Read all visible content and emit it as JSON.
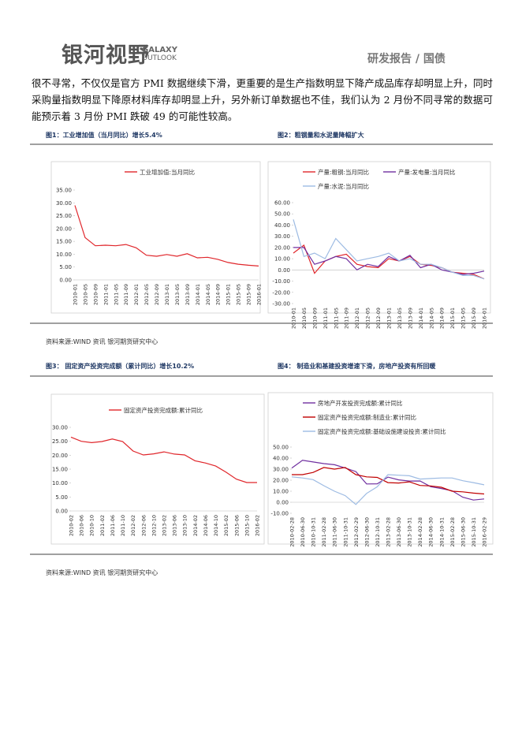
{
  "header": {
    "logo": "银河视野",
    "logo_en_1": "GALAXY",
    "logo_en_2": "OUTLOOK",
    "section": "研发报告 / 国债"
  },
  "paragraph": "很不寻常，不仅仅是官方 PMI 数据继续下滑，更重要的是生产指数明显下降产成品库存却明显上升，同时采购量指数明显下降原材料库存却明显上升，另外新订单数据也不佳，我们认为 2 月份不同寻常的数据可能预示着 3 月份 PMI 跌破 49 的可能性较高。",
  "sources": [
    "资料来源:WIND 资讯   银河期货研究中心",
    "资料来源:WIND 资讯   银河期货研究中心"
  ],
  "chart_data": [
    {
      "type": "line",
      "title": "图1：工业增加值（当月同比）增长5.4%",
      "categories": [
        "2010-01",
        "2010-05",
        "2010-09",
        "2011-01",
        "2011-05",
        "2011-09",
        "2012-01",
        "2012-05",
        "2012-09",
        "2013-01",
        "2013-05",
        "2013-09",
        "2014-01",
        "2014-05",
        "2014-09",
        "2015-01",
        "2015-05",
        "2015-09",
        "2016-01"
      ],
      "series": [
        {
          "name": "工业增加值:当月同比",
          "color": "#e0262b",
          "values": [
            29,
            16.5,
            13.3,
            13.5,
            13.3,
            13.8,
            12.5,
            9.6,
            9.2,
            9.9,
            9.2,
            10.2,
            8.6,
            8.8,
            8,
            6.8,
            6.1,
            5.7,
            5.4
          ]
        }
      ],
      "ylim": [
        0,
        35
      ],
      "yticks": [
        {
          "value": 0,
          "label": "0.00"
        },
        {
          "value": 5,
          "label": "5.00"
        },
        {
          "value": 10,
          "label": "10.00"
        },
        {
          "value": 15,
          "label": "15.00"
        },
        {
          "value": 20,
          "label": "20.00"
        },
        {
          "value": 25,
          "label": "25.00"
        },
        {
          "value": 30,
          "label": "30.00"
        },
        {
          "value": 35,
          "label": "35.00"
        }
      ]
    },
    {
      "type": "line",
      "title": "图2：粗钢量和水泥量降幅扩大",
      "categories": [
        "2010-01",
        "2010-05",
        "2010-09",
        "2011-01",
        "2011-05",
        "2011-09",
        "2012-01",
        "2012-05",
        "2012-09",
        "2013-01",
        "2013-05",
        "2013-09",
        "2014-01",
        "2014-05",
        "2014-09",
        "2015-01",
        "2015-05",
        "2015-09",
        "2016-01"
      ],
      "series": [
        {
          "name": "产量:粗钢:当月同比",
          "color": "#e0262b",
          "values": [
            15,
            22,
            -3,
            8,
            12,
            14,
            5,
            3,
            2,
            10,
            8,
            12,
            5,
            4,
            2,
            -2,
            -3,
            -4,
            -8
          ]
        },
        {
          "name": "产量:发电量:当月同比",
          "color": "#7030a0",
          "values": [
            20,
            20,
            5,
            8,
            12,
            10,
            0,
            5,
            3,
            12,
            8,
            13,
            2,
            5,
            0,
            -2,
            -4,
            -3,
            -1
          ]
        },
        {
          "name": "产量:水泥:当月同比",
          "color": "#9dbbe3",
          "values": [
            45,
            12,
            15,
            10,
            28,
            18,
            8,
            10,
            12,
            15,
            8,
            10,
            5,
            5,
            2,
            -2,
            -5,
            -5,
            -8
          ]
        }
      ],
      "ylim": [
        -30,
        60
      ],
      "yticks": [
        {
          "value": -30,
          "label": "-30.00"
        },
        {
          "value": -20,
          "label": "-20.00"
        },
        {
          "value": -10,
          "label": "-10.00"
        },
        {
          "value": 0,
          "label": "0.00"
        },
        {
          "value": 10,
          "label": "10.00"
        },
        {
          "value": 20,
          "label": "20.00"
        },
        {
          "value": 30,
          "label": "30.00"
        },
        {
          "value": 40,
          "label": "40.00"
        },
        {
          "value": 50,
          "label": "50.00"
        },
        {
          "value": 60,
          "label": "60.00"
        }
      ]
    },
    {
      "type": "line",
      "title": "图3：  固定资产投资完成额（累计同比）增长10.2%",
      "categories": [
        "2010-02",
        "2010-06",
        "2010-10",
        "2011-02",
        "2011-06",
        "2011-10",
        "2012-02",
        "2012-06",
        "2012-10",
        "2013-02",
        "2013-06",
        "2013-10",
        "2014-02",
        "2014-06",
        "2014-10",
        "2015-02",
        "2015-06",
        "2015-10",
        "2016-02"
      ],
      "series": [
        {
          "name": "固定资产投资完成额:累计同比",
          "color": "#e0262b",
          "values": [
            26.5,
            25,
            24.5,
            24.9,
            25.8,
            24.9,
            21.5,
            20.1,
            20.5,
            21.2,
            20.4,
            20.1,
            18,
            17.2,
            16.1,
            13.9,
            11.4,
            10.2,
            10.2
          ]
        }
      ],
      "ylim": [
        0,
        30
      ],
      "yticks": [
        {
          "value": 0,
          "label": "0.00"
        },
        {
          "value": 5,
          "label": "5.00"
        },
        {
          "value": 10,
          "label": "10.00"
        },
        {
          "value": 15,
          "label": "15.00"
        },
        {
          "value": 20,
          "label": "20.00"
        },
        {
          "value": 25,
          "label": "25.00"
        },
        {
          "value": 30,
          "label": "30.00"
        }
      ]
    },
    {
      "type": "line",
      "title": "图4：  制造业和基建投资增速下滑，房地产投资有所回暖",
      "categories": [
        "2010-02-28",
        "2010-06-30",
        "2010-10-31",
        "2011-02-28",
        "2011-06-30",
        "2011-10-31",
        "2012-02-29",
        "2012-06-30",
        "2012-10-31",
        "2013-02-28",
        "2013-06-30",
        "2013-10-31",
        "2014-02-28",
        "2014-06-30",
        "2014-10-31",
        "2015-02-28",
        "2015-06-30",
        "2015-10-31",
        "2016-02-29"
      ],
      "series": [
        {
          "name": "房地产开发投资完成额:累计同比",
          "color": "#7030a0",
          "values": [
            31,
            38,
            36.5,
            35,
            34,
            31,
            27.8,
            16.6,
            16.7,
            22.8,
            20.3,
            19.2,
            19.3,
            14.1,
            12.4,
            10.4,
            4.6,
            2,
            3
          ]
        },
        {
          "name": "固定资产投资完成额:制造业:累计同比",
          "color": "#c00000",
          "values": [
            25,
            25,
            27,
            31.5,
            30,
            31.5,
            25,
            23,
            22.5,
            17.8,
            17.4,
            18.5,
            15.2,
            14.8,
            13.6,
            10,
            9.4,
            8.3,
            7.5
          ]
        },
        {
          "name": "固定资产投资完成额:基础设施建设投资:累计同比",
          "color": "#9dbbe3",
          "values": [
            23,
            22,
            20.5,
            15,
            10,
            6,
            -2,
            8,
            14,
            25,
            24.5,
            24,
            21,
            21.5,
            22,
            22,
            19.5,
            17.8,
            15.8
          ]
        }
      ],
      "ylim": [
        -10,
        50
      ],
      "yticks": [
        {
          "value": -10,
          "label": "-10.00"
        },
        {
          "value": 0,
          "label": "0.00"
        },
        {
          "value": 10,
          "label": "10.00"
        },
        {
          "value": 20,
          "label": "20.00"
        },
        {
          "value": 30,
          "label": "30.00"
        },
        {
          "value": 40,
          "label": "40.00"
        },
        {
          "value": 50,
          "label": "50.00"
        }
      ]
    }
  ]
}
